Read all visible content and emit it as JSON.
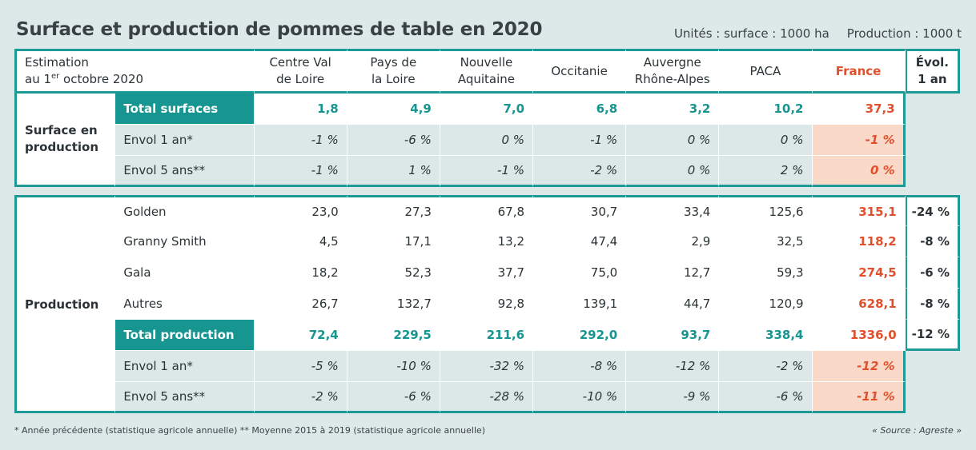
{
  "title": "Surface et production de pommes de table en 2020",
  "units": {
    "surface": "Unités : surface : 1000 ha",
    "production": "Production : 1000 t"
  },
  "header": {
    "estimation_line1": "Estimation",
    "estimation_line2_pre": "au 1",
    "estimation_sup": "er",
    "estimation_line2_post": " octobre 2020",
    "regions": [
      [
        "Centre Val",
        "de Loire"
      ],
      [
        "Pays de",
        "la Loire"
      ],
      [
        "Nouvelle",
        "Aquitaine"
      ],
      [
        "Occitanie",
        ""
      ],
      [
        "Auvergne",
        "Rhône-Alpes"
      ],
      [
        "PACA",
        ""
      ]
    ],
    "france": "France",
    "evol": [
      "Évol.",
      "1 an"
    ]
  },
  "surface": {
    "group_label_1": "Surface en",
    "group_label_2": "production",
    "rows": [
      {
        "label": "Total surfaces",
        "values": [
          "1,8",
          "4,9",
          "7,0",
          "6,8",
          "3,2",
          "10,2"
        ],
        "france": "37,3"
      },
      {
        "label": "Envol 1 an*",
        "values": [
          "-1 %",
          "-6 %",
          "0 %",
          "-1 %",
          "0 %",
          "0 %"
        ],
        "france": "-1 %"
      },
      {
        "label": "Envol 5 ans**",
        "values": [
          "-1 %",
          "1 %",
          "-1 %",
          "-2 %",
          "0 %",
          "2 %"
        ],
        "france": "0 %"
      }
    ]
  },
  "production": {
    "group_label": "Production",
    "rows": [
      {
        "label": "Golden",
        "values": [
          "23,0",
          "27,3",
          "67,8",
          "30,7",
          "33,4",
          "125,6"
        ],
        "france": "315,1",
        "evol": "-24 %"
      },
      {
        "label": "Granny Smith",
        "values": [
          "4,5",
          "17,1",
          "13,2",
          "47,4",
          "2,9",
          "32,5"
        ],
        "france": "118,2",
        "evol": "-8 %"
      },
      {
        "label": "Gala",
        "values": [
          "18,2",
          "52,3",
          "37,7",
          "75,0",
          "12,7",
          "59,3"
        ],
        "france": "274,5",
        "evol": "-6 %"
      },
      {
        "label": "Autres",
        "values": [
          "26,7",
          "132,7",
          "92,8",
          "139,1",
          "44,7",
          "120,9"
        ],
        "france": "628,1",
        "evol": "-8 %"
      }
    ],
    "total": {
      "label": "Total production",
      "values": [
        "72,4",
        "229,5",
        "211,6",
        "292,0",
        "93,7",
        "338,4"
      ],
      "france": "1336,0",
      "evol": "-12 %"
    },
    "envol1": {
      "label": "Envol 1 an*",
      "values": [
        "-5 %",
        "-10 %",
        "-32 %",
        "-8 %",
        "-12 %",
        "-2 %"
      ],
      "france": "-12 %"
    },
    "envol5": {
      "label": "Envol 5 ans**",
      "values": [
        "-2 %",
        "-6 %",
        "-28 %",
        "-10 %",
        "-9 %",
        "-6 %"
      ],
      "france": "-11 %"
    }
  },
  "footnote": "* Année précédente (statistique agricole annuelle) ** Moyenne 2015 à 2019 (statistique agricole annuelle)",
  "source": "« Source : Agreste »",
  "colors": {
    "teal": "#179590",
    "france_red": "#e0502d",
    "france_bg": "#fbd9c8",
    "row_bg": "#dce8e7"
  }
}
